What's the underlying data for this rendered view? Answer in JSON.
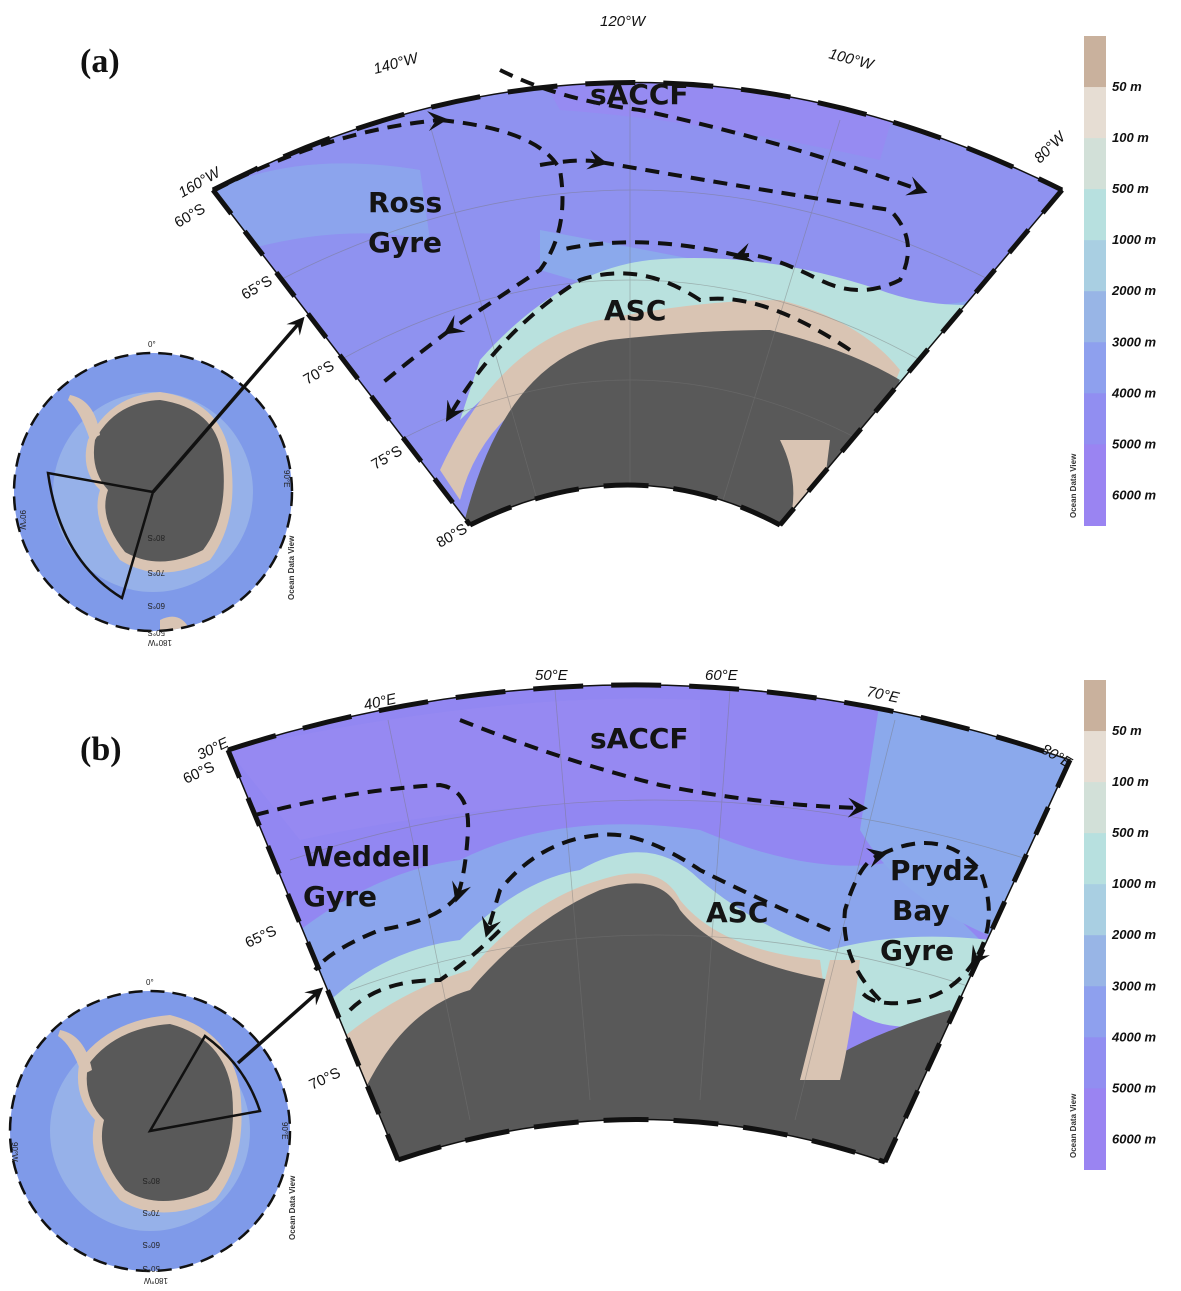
{
  "panels": {
    "a": {
      "label": "(a)",
      "lon_labels": [
        "160°W",
        "140°W",
        "120°W",
        "100°W",
        "80°W"
      ],
      "lat_labels": [
        "60°S",
        "65°S",
        "70°S",
        "75°S",
        "80°S"
      ],
      "features": {
        "saccf": "sACCF",
        "gyre_line1": "Ross",
        "gyre_line2": "Gyre",
        "asc": "ASC"
      },
      "inset": {
        "labels": [
          "0°",
          "90°W",
          "90°E",
          "80°S",
          "70°S",
          "60°S",
          "50°S",
          "180°W"
        ],
        "credit": "Ocean Data View"
      }
    },
    "b": {
      "label": "(b)",
      "lon_labels": [
        "30°E",
        "40°E",
        "50°E",
        "60°E",
        "70°E",
        "80°E"
      ],
      "lat_labels": [
        "60°S",
        "65°S",
        "70°S"
      ],
      "features": {
        "saccf": "sACCF",
        "gyre_line1": "Weddell",
        "gyre_line2": "Gyre",
        "asc": "ASC",
        "pb_line1": "Prydz",
        "pb_line2": "Bay",
        "pb_line3": "Gyre"
      },
      "inset": {
        "labels": [
          "0°",
          "90°W",
          "90°E",
          "80°S",
          "70°S",
          "60°S",
          "50°S",
          "180°W"
        ],
        "credit": "Ocean Data View"
      }
    }
  },
  "colorbar": {
    "labels": [
      "50 m",
      "100 m",
      "500 m",
      "1000 m",
      "2000 m",
      "3000 m",
      "4000 m",
      "5000 m",
      "6000 m"
    ],
    "colors": [
      "#c9b19d",
      "#e6ddd3",
      "#d2e0d8",
      "#b7e0df",
      "#a9cfe2",
      "#98b5e6",
      "#8ea0ee",
      "#918ef1",
      "#9a84f2"
    ],
    "credit": "Ocean Data View"
  },
  "colors": {
    "land": "#595959",
    "shelf": "#d9c4b3",
    "deep_ocean": "#8c8ff0",
    "mid_ocean": "#8ba9ec",
    "slope": "#b9e1de"
  }
}
